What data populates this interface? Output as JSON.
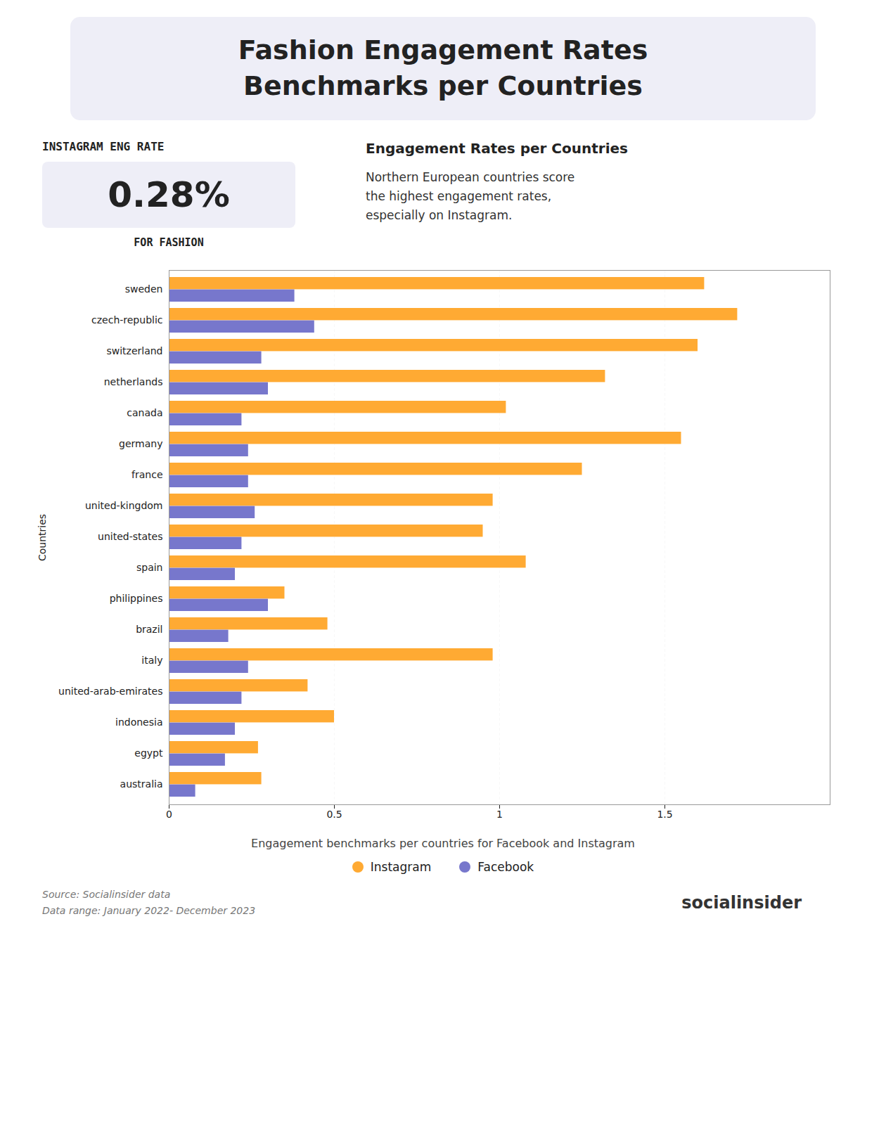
{
  "chart_data": {
    "type": "bar",
    "orientation": "horizontal",
    "title": "Fashion Engagement Rates\nBenchmarks per Countries",
    "subtitle": "Engagement Rates per Countries",
    "annotations": [
      "INSTAGRAM ENG RATE",
      "0.28%",
      "FOR FASHION",
      "Northern European countries score\nthe highest engagement rates,\nespecially on Instagram.",
      "Engagement benchmarks per countries for Facebook and Instagram",
      "Source: Socialinsider data\nData range: January 2022- December 2023",
      "socialinsider"
    ],
    "y_label": "Countries",
    "categories": [
      "sweden",
      "czech-republic",
      "switzerland",
      "netherlands",
      "canada",
      "germany",
      "france",
      "united-kingdom",
      "united-states",
      "spain",
      "philippines",
      "brazil",
      "italy",
      "united-arab-emirates",
      "indonesia",
      "egypt",
      "australia"
    ],
    "series": [
      {
        "name": "Instagram",
        "color": "#FFAA33",
        "values": [
          1.62,
          1.72,
          1.6,
          1.32,
          1.02,
          1.55,
          1.25,
          0.98,
          0.95,
          1.08,
          0.35,
          0.48,
          0.98,
          0.42,
          0.5,
          0.27,
          0.28
        ]
      },
      {
        "name": "Facebook",
        "color": "#7777cc",
        "values": [
          0.38,
          0.44,
          0.28,
          0.3,
          0.22,
          0.24,
          0.24,
          0.26,
          0.22,
          0.2,
          0.3,
          0.18,
          0.24,
          0.22,
          0.2,
          0.17,
          0.08
        ]
      }
    ],
    "xlim": [
      0,
      2.0
    ],
    "xticks": [
      0,
      0.5,
      1,
      1.5
    ],
    "grid": true,
    "legend": "bottom"
  }
}
